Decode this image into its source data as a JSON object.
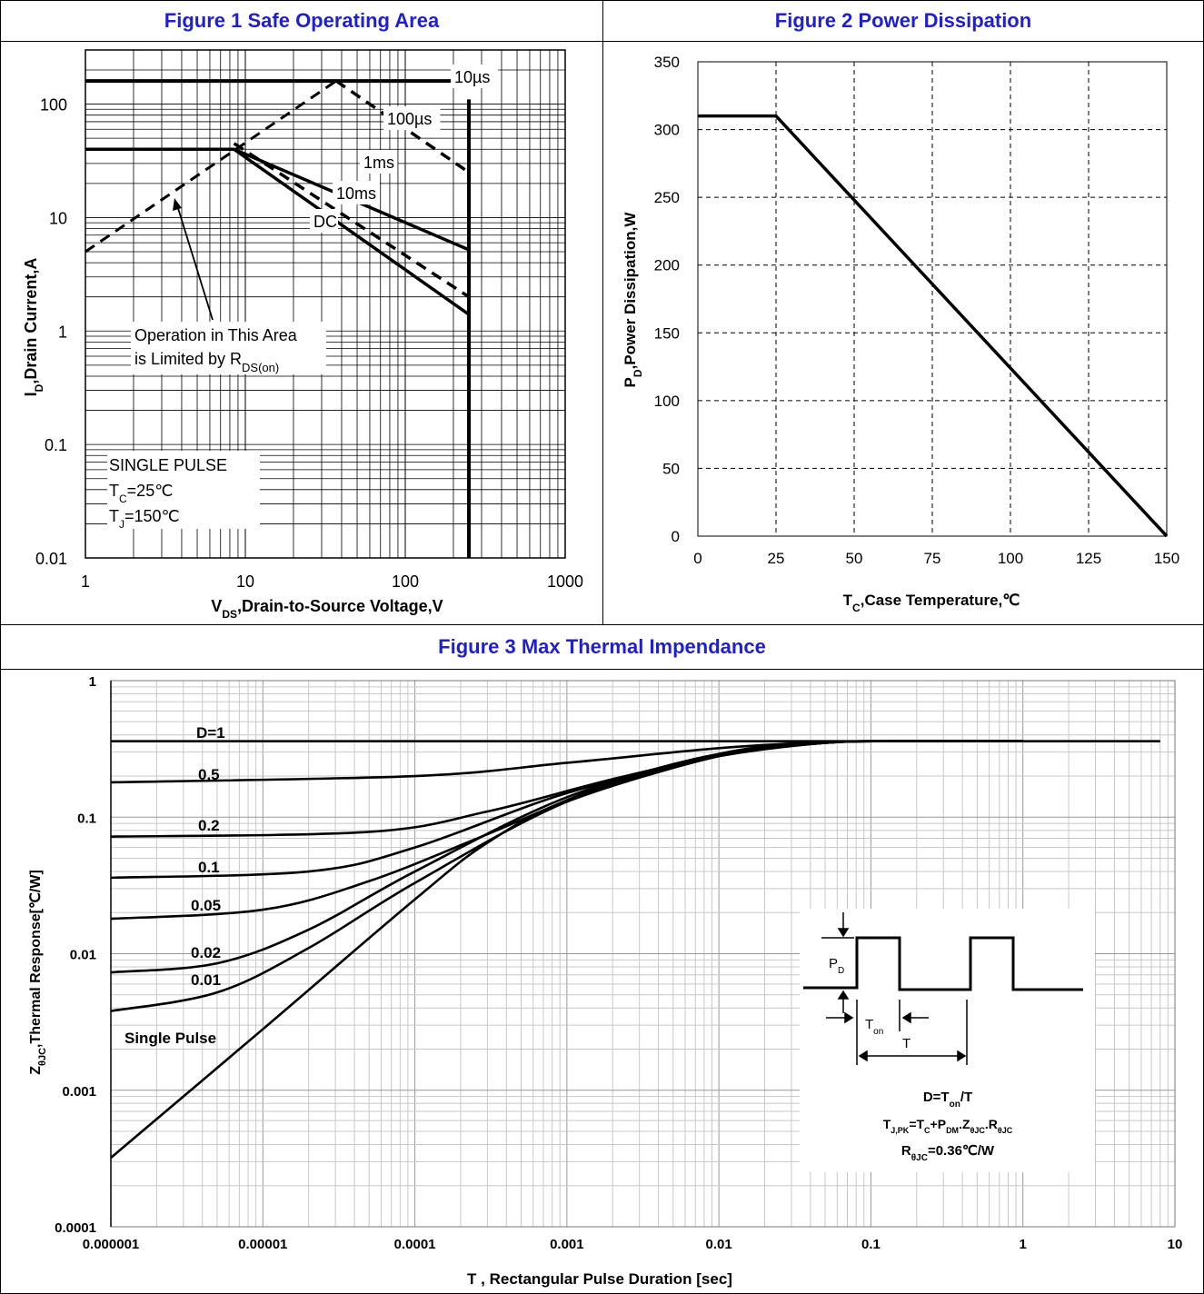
{
  "colors": {
    "title": "#1f1fcf",
    "ink": "#000000",
    "grid": "#000000",
    "grid_light": "#bdbdbd"
  },
  "fig1": {
    "title": "Figure 1 Safe Operating Area",
    "ylabel_main": "I",
    "ylabel_sub": "D",
    "ylabel_rest": ",Drain Current,A",
    "xlabel_main": "V",
    "xlabel_sub": "DS",
    "xlabel_rest": ",Drain-to-Source Voltage,V",
    "note1": "Operation in This Area",
    "note2_main": "is Limited by R",
    "note2_sub": "DS(on)",
    "box_l1": "SINGLE PULSE",
    "box_l2_main": "T",
    "box_l2_sub": "C",
    "box_l2_rest": "=25℃",
    "box_l3_main": "T",
    "box_l3_sub": "J",
    "box_l3_rest": "=150℃"
  },
  "fig2": {
    "title": "Figure 2 Power Dissipation",
    "ylabel_main": "P",
    "ylabel_sub": "D",
    "ylabel_rest": ",Power Dissipation,W",
    "xlabel_main": "T",
    "xlabel_sub": "C",
    "xlabel_rest": ",Case Temperature,℃"
  },
  "fig3": {
    "title": "Figure 3 Max Thermal Impendance",
    "ylabel_main": "Z",
    "ylabel_sub": "θJC",
    "ylabel_rest": ",Thermal Response[℃/W]",
    "xlabel": "T , Rectangular Pulse Duration [sec]",
    "inset_pd_main": "P",
    "inset_pd_sub": "D",
    "inset_ton_main": "T",
    "inset_ton_sub": "on",
    "inset_t": "T",
    "eq1_a": "D=T",
    "eq1_b": "on",
    "eq1_c": "/T",
    "eq2_a": "T",
    "eq2_b": "J,PK",
    "eq2_c": "=T",
    "eq2_d": "C",
    "eq2_e": "+P",
    "eq2_f": "DM",
    "eq2_g": ".Z",
    "eq2_h": "θJC",
    "eq2_i": ".R",
    "eq2_j": "θJC",
    "eq3_a": "R",
    "eq3_b": "θJC",
    "eq3_c": "=0.36℃/W"
  },
  "chart_data": [
    {
      "type": "line",
      "title": "Figure 1 Safe Operating Area",
      "xlabel": "VDS,Drain-to-Source Voltage,V",
      "ylabel": "ID,Drain Current,A",
      "x_scale": "log",
      "y_scale": "log",
      "xlim": [
        1,
        1000
      ],
      "ylim": [
        0.01,
        300
      ],
      "x_ticks": [
        "1",
        "10",
        "100",
        "1000"
      ],
      "y_ticks": [
        "0.01",
        "0.1",
        "1",
        "10",
        "100"
      ],
      "series": [
        {
          "name": "10µs",
          "points": [
            [
              1,
              160
            ],
            [
              250,
              160
            ]
          ]
        },
        {
          "name": "100µs",
          "points": [
            [
              37,
              160
            ],
            [
              250,
              25
            ]
          ]
        },
        {
          "name": "1ms",
          "points": [
            [
              1,
              40
            ],
            [
              8.5,
              40
            ],
            [
              250,
              5.2
            ]
          ]
        },
        {
          "name": "10ms",
          "points": [
            [
              8.5,
              45
            ],
            [
              250,
              2.0
            ]
          ]
        },
        {
          "name": "DC",
          "points": [
            [
              8.5,
              40
            ],
            [
              250,
              1.4
            ]
          ]
        },
        {
          "name": "RDS(on) limit",
          "points": [
            [
              1,
              5
            ],
            [
              37,
              160
            ]
          ]
        },
        {
          "name": "VDS max",
          "points": [
            [
              250,
              0.01
            ],
            [
              250,
              110
            ]
          ]
        }
      ],
      "labels": [
        "10µs",
        "100µs",
        "1ms",
        "10ms",
        "DC"
      ]
    },
    {
      "type": "line",
      "title": "Figure 2 Power Dissipation",
      "xlabel": "TC,Case Temperature,℃",
      "ylabel": "PD,Power Dissipation,W",
      "xlim": [
        0,
        150
      ],
      "ylim": [
        0,
        350
      ],
      "x_ticks": [
        "0",
        "25",
        "50",
        "75",
        "100",
        "125",
        "150"
      ],
      "y_ticks": [
        "0",
        "50",
        "100",
        "150",
        "200",
        "250",
        "300",
        "350"
      ],
      "grid": "dashed",
      "series": [
        {
          "points": [
            [
              0,
              310
            ],
            [
              25,
              310
            ],
            [
              150,
              0
            ]
          ]
        }
      ]
    },
    {
      "type": "line",
      "title": "Figure 3 Max Thermal Impendance",
      "xlabel": "T , Rectangular Pulse Duration [sec]",
      "ylabel": "ZθJC,Thermal Response[℃/W]",
      "x_scale": "log",
      "y_scale": "log",
      "xlim": [
        1e-06,
        10
      ],
      "ylim": [
        0.0001,
        1
      ],
      "x_ticks": [
        "0.000001",
        "0.00001",
        "0.0001",
        "0.001",
        "0.01",
        "0.1",
        "1",
        "10"
      ],
      "y_ticks": [
        "0.0001",
        "0.001",
        "0.01",
        "0.1",
        "1"
      ],
      "series": [
        {
          "name": "D=1",
          "points": [
            [
              1e-06,
              0.36
            ],
            [
              8,
              0.36
            ]
          ]
        },
        {
          "name": "0.5",
          "points": [
            [
              1e-06,
              0.18
            ],
            [
              0.0001,
              0.2
            ],
            [
              0.001,
              0.25
            ],
            [
              0.01,
              0.32
            ],
            [
              0.05,
              0.355
            ],
            [
              0.15,
              0.36
            ]
          ]
        },
        {
          "name": "0.2",
          "points": [
            [
              1e-06,
              0.072
            ],
            [
              5e-05,
              0.078
            ],
            [
              0.0003,
              0.11
            ],
            [
              0.002,
              0.19
            ],
            [
              0.01,
              0.28
            ],
            [
              0.05,
              0.35
            ],
            [
              0.15,
              0.36
            ]
          ]
        },
        {
          "name": "0.1",
          "points": [
            [
              1e-06,
              0.036
            ],
            [
              2e-05,
              0.04
            ],
            [
              0.0001,
              0.06
            ],
            [
              0.001,
              0.15
            ],
            [
              0.01,
              0.28
            ],
            [
              0.05,
              0.35
            ],
            [
              0.15,
              0.36
            ]
          ]
        },
        {
          "name": "0.05",
          "points": [
            [
              1e-06,
              0.018
            ],
            [
              1e-05,
              0.021
            ],
            [
              5e-05,
              0.034
            ],
            [
              0.0003,
              0.075
            ],
            [
              0.002,
              0.18
            ],
            [
              0.01,
              0.29
            ],
            [
              0.05,
              0.35
            ],
            [
              0.15,
              0.36
            ]
          ]
        },
        {
          "name": "0.02",
          "points": [
            [
              1e-06,
              0.0073
            ],
            [
              5e-06,
              0.0085
            ],
            [
              2e-05,
              0.015
            ],
            [
              0.0001,
              0.04
            ],
            [
              0.001,
              0.14
            ],
            [
              0.01,
              0.29
            ],
            [
              0.05,
              0.35
            ],
            [
              0.15,
              0.36
            ]
          ]
        },
        {
          "name": "0.01",
          "points": [
            [
              1e-06,
              0.0038
            ],
            [
              5e-06,
              0.0052
            ],
            [
              2e-05,
              0.011
            ],
            [
              0.0001,
              0.033
            ],
            [
              0.001,
              0.13
            ],
            [
              0.01,
              0.29
            ],
            [
              0.05,
              0.35
            ],
            [
              0.15,
              0.36
            ]
          ]
        },
        {
          "name": "Single Pulse",
          "points": [
            [
              1e-06,
              0.00032
            ],
            [
              1e-05,
              0.0028
            ],
            [
              0.0001,
              0.025
            ],
            [
              0.0003,
              0.065
            ],
            [
              0.001,
              0.13
            ],
            [
              0.01,
              0.28
            ],
            [
              0.05,
              0.35
            ],
            [
              0.15,
              0.36
            ]
          ]
        }
      ]
    }
  ]
}
